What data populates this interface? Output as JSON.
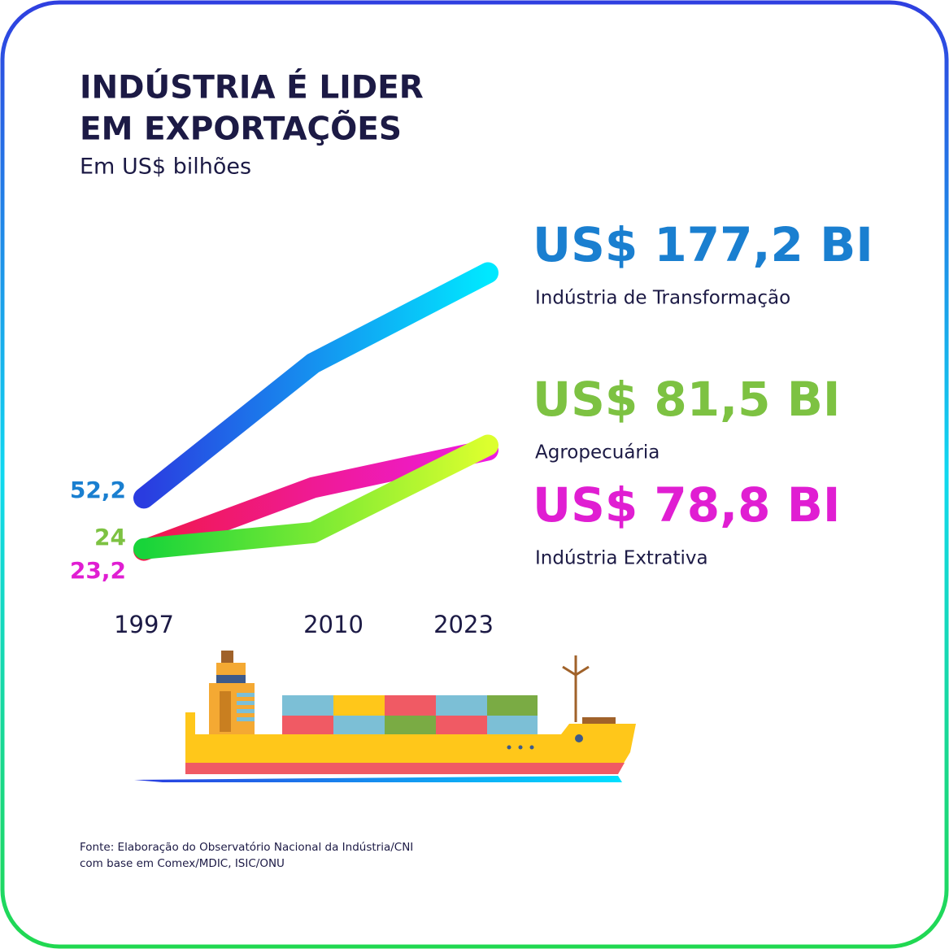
{
  "chart_data": {
    "type": "line",
    "title": [
      "INDÚSTRIA É LIDER",
      "EM EXPORTAÇÕES"
    ],
    "subtitle": "Em US$ bilhões",
    "categories": [
      "1997",
      "2010",
      "2023"
    ],
    "ylim": [
      0,
      200
    ],
    "series": [
      {
        "name": "Indústria de Transformação",
        "color": "#1a7fd0",
        "gradient": [
          "#2a3ce0",
          "#00e8ff"
        ],
        "values": [
          52.2,
          127,
          177.2
        ],
        "value_labels": [
          "52,2",
          null,
          "US$ 177,2 BI"
        ]
      },
      {
        "name": "Agropecuária",
        "color": "#7dc242",
        "gradient": [
          "#18d43a",
          "#dcff2e"
        ],
        "values": [
          24,
          33,
          81.5
        ],
        "value_labels": [
          "24",
          null,
          "US$ 81,5 BI"
        ]
      },
      {
        "name": "Indústria Extrativa",
        "color": "#e01ed2",
        "gradient": [
          "#f0184a",
          "#ee1ce0"
        ],
        "values": [
          23.2,
          58,
          78.8
        ],
        "value_labels": [
          "23,2",
          null,
          "US$ 78,8 BI"
        ]
      }
    ],
    "source": [
      "Fonte: Elaboração do Observatório Nacional da Indústria/CNI",
      "com base em Comex/MDIC, ISIC/ONU"
    ]
  }
}
